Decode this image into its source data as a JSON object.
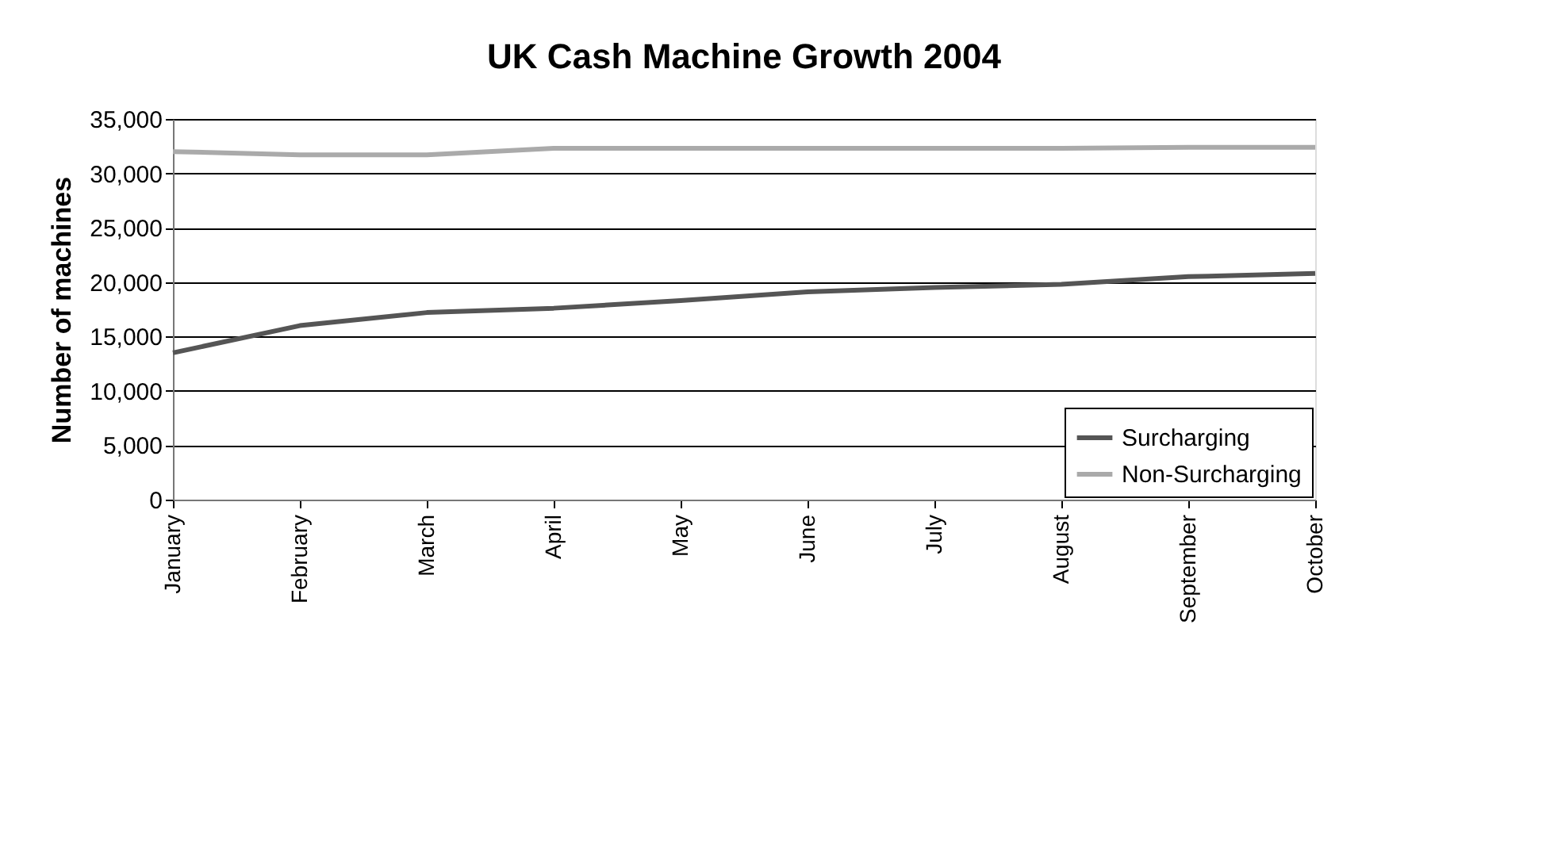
{
  "chart_data": {
    "type": "line",
    "title": "UK Cash Machine Growth 2004",
    "ylabel": "Number of machines",
    "categories": [
      "January",
      "February",
      "March",
      "April",
      "May",
      "June",
      "July",
      "August",
      "September",
      "October"
    ],
    "series": [
      {
        "name": "Surcharging",
        "color": "#555555",
        "values": [
          13500,
          16000,
          17200,
          17600,
          18300,
          19100,
          19500,
          19800,
          20500,
          20800
        ]
      },
      {
        "name": "Non-Surcharging",
        "color": "#aaaaaa",
        "values": [
          32000,
          31700,
          31700,
          32300,
          32300,
          32300,
          32300,
          32300,
          32400,
          32400
        ]
      }
    ],
    "ylim": [
      0,
      35000
    ],
    "yticks": [
      0,
      {
        "value": 5000,
        "label": "5,000"
      },
      {
        "value": 10000,
        "label": "10,000"
      },
      {
        "value": 15000,
        "label": "15,000"
      },
      {
        "value": 20000,
        "label": "20,000"
      },
      {
        "value": 25000,
        "label": "25,000"
      },
      {
        "value": 30000,
        "label": "30,000"
      },
      {
        "value": 35000,
        "label": "35,000"
      }
    ],
    "grid": "y",
    "legend": "bottom right",
    "marker": "none",
    "line_style": "solid"
  }
}
